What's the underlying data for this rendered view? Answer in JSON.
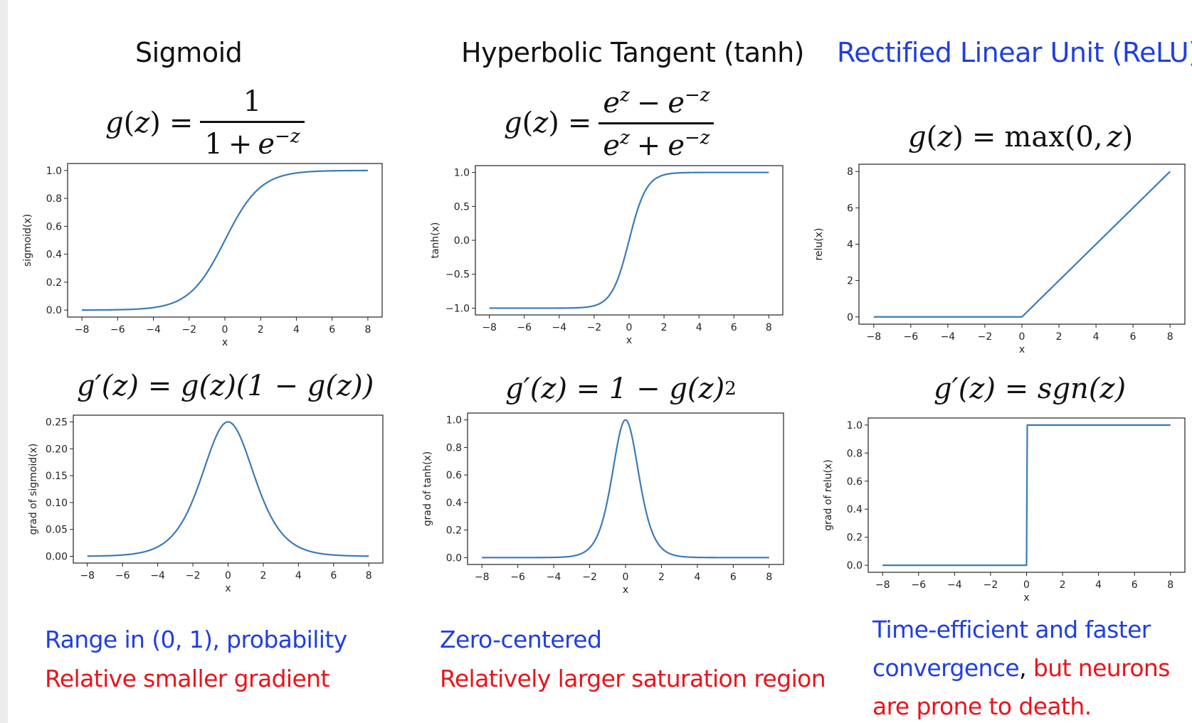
{
  "colors": {
    "blue_text": "#1f3fe0",
    "red_text": "#e8141c",
    "line": "#3b7bb6",
    "title_black": "#111111"
  },
  "titles": {
    "sigmoid": "Sigmoid",
    "tanh": "Hyperbolic Tangent (tanh)",
    "relu": "Rectified Linear Unit (ReLU)"
  },
  "formulas": {
    "g": "g",
    "z": "z",
    "eq": "=",
    "one": "1",
    "e": "e",
    "exp_pos": "z",
    "exp_neg": "−z",
    "plus": "+",
    "minus": "−",
    "max": "max",
    "zero": "0",
    "sgn": "sgn",
    "two": "2",
    "sig_deriv_text": "g′(z) = g(z)(1 − g(z))",
    "tanh_deriv_text": "g′(z) = 1 − g(z)",
    "relu_deriv_text": "g′(z) = sgn(z)"
  },
  "notes": {
    "sigmoid_blue": "Range in (0, 1), probability",
    "sigmoid_red": "Relative smaller gradient",
    "tanh_blue": "Zero-centered",
    "tanh_red": "Relatively larger saturation region",
    "relu_blue_1": "Time-efficient and faster",
    "relu_blue_2": "convergence",
    "relu_comma": ",",
    "relu_red_1": " but neurons",
    "relu_red_2": "are prone to death."
  },
  "chart_data": [
    {
      "id": "sigmoid",
      "type": "line",
      "func": "sigmoid",
      "x_range": [
        -8,
        8
      ],
      "xlabel": "x",
      "ylabel": "sigmoid(x)",
      "xticks": [
        -8,
        -6,
        -4,
        -2,
        0,
        2,
        4,
        6,
        8
      ],
      "yticks": [
        0.0,
        0.2,
        0.4,
        0.6,
        0.8,
        1.0
      ],
      "ytick_labels": [
        "0.0",
        "0.2",
        "0.4",
        "0.6",
        "0.8",
        "1.0"
      ],
      "ylim": [
        -0.05,
        1.05
      ]
    },
    {
      "id": "tanh",
      "type": "line",
      "func": "tanh",
      "x_range": [
        -8,
        8
      ],
      "xlabel": "x",
      "ylabel": "tanh(x)",
      "xticks": [
        -8,
        -6,
        -4,
        -2,
        0,
        2,
        4,
        6,
        8
      ],
      "yticks": [
        -1.0,
        -0.5,
        0.0,
        0.5,
        1.0
      ],
      "ytick_labels": [
        "−1.0",
        "−0.5",
        "0.0",
        "0.5",
        "1.0"
      ],
      "ylim": [
        -1.1,
        1.1
      ]
    },
    {
      "id": "relu",
      "type": "line",
      "func": "relu",
      "x_range": [
        -8,
        8
      ],
      "xlabel": "x",
      "ylabel": "relu(x)",
      "xticks": [
        -8,
        -6,
        -4,
        -2,
        0,
        2,
        4,
        6,
        8
      ],
      "yticks": [
        0,
        2,
        4,
        6,
        8
      ],
      "ytick_labels": [
        "0",
        "2",
        "4",
        "6",
        "8"
      ],
      "ylim": [
        -0.4,
        8.4
      ]
    },
    {
      "id": "dsigmoid",
      "type": "line",
      "func": "dsigmoid",
      "x_range": [
        -8,
        8
      ],
      "xlabel": "x",
      "ylabel": "grad of sigmoid(x)",
      "xticks": [
        -8,
        -6,
        -4,
        -2,
        0,
        2,
        4,
        6,
        8
      ],
      "yticks": [
        0.0,
        0.05,
        0.1,
        0.15,
        0.2,
        0.25
      ],
      "ytick_labels": [
        "0.00",
        "0.05",
        "0.10",
        "0.15",
        "0.20",
        "0.25"
      ],
      "ylim": [
        -0.0125,
        0.2625
      ]
    },
    {
      "id": "dtanh",
      "type": "line",
      "func": "dtanh",
      "x_range": [
        -8,
        8
      ],
      "xlabel": "x",
      "ylabel": "grad of tanh(x)",
      "xticks": [
        -8,
        -6,
        -4,
        -2,
        0,
        2,
        4,
        6,
        8
      ],
      "yticks": [
        0.0,
        0.2,
        0.4,
        0.6,
        0.8,
        1.0
      ],
      "ytick_labels": [
        "0.0",
        "0.2",
        "0.4",
        "0.6",
        "0.8",
        "1.0"
      ],
      "ylim": [
        -0.05,
        1.05
      ]
    },
    {
      "id": "drelu",
      "type": "line",
      "func": "drelu",
      "x_range": [
        -8,
        8
      ],
      "xlabel": "x",
      "ylabel": "grad of relu(x)",
      "xticks": [
        -8,
        -6,
        -4,
        -2,
        0,
        2,
        4,
        6,
        8
      ],
      "yticks": [
        0.0,
        0.2,
        0.4,
        0.6,
        0.8,
        1.0
      ],
      "ytick_labels": [
        "0.0",
        "0.2",
        "0.4",
        "0.6",
        "0.8",
        "1.0"
      ],
      "ylim": [
        -0.05,
        1.05
      ]
    }
  ]
}
